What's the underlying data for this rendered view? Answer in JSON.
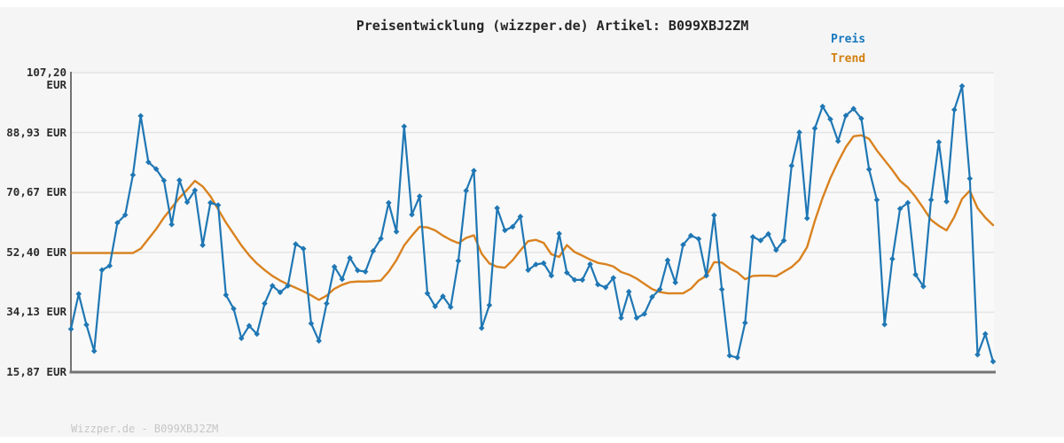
{
  "title": "Preisentwicklung (wizzper.de) Artikel: B099XBJ2ZM",
  "watermark": "Wizzper.de - B099XBJ2ZM",
  "legend": {
    "price_label": "Preis",
    "trend_label": "Trend"
  },
  "colors": {
    "price": "#1f77b4",
    "trend": "#d9821f",
    "background": "#f5f5f6",
    "plot_background": "#f9f9f9",
    "gridline": "#e4e4e4",
    "axis_spine": "#737373",
    "label_text": "#2c2c2c",
    "watermark_text": "#c6c6c6"
  },
  "y_axis": {
    "labels": [
      "107,20 EUR",
      "88,93 EUR",
      "70,67 EUR",
      "52,40 EUR",
      "34,13 EUR",
      "15,87 EUR"
    ],
    "values": [
      107.2,
      88.93,
      70.67,
      52.4,
      34.13,
      15.87
    ]
  },
  "chart_data": {
    "type": "line",
    "title": "Preisentwicklung (wizzper.de) Artikel: B099XBJ2ZM",
    "unit": "EUR",
    "ylim": [
      15.87,
      107.2
    ],
    "y_ticks": [
      107.2,
      88.93,
      70.67,
      52.4,
      34.13,
      15.87
    ],
    "x_tick_labels_visible": false,
    "grid": "horizontal",
    "legend_position": "top-right",
    "series": [
      {
        "name": "Preis",
        "color": "#1f77b4",
        "marker": "diamond",
        "values": [
          29,
          39.7,
          30.3,
          22.3,
          47,
          48.3,
          61.4,
          63.8,
          76,
          94,
          79.9,
          77.8,
          74.3,
          60.9,
          74.4,
          67.7,
          71.3,
          54.6,
          67.5,
          66.8,
          39.4,
          35.2,
          26.2,
          30,
          27.5,
          36.8,
          42.2,
          40.2,
          42.2,
          54.9,
          53.5,
          30.7,
          25.4,
          36.8,
          48,
          44.2,
          50.7,
          46.9,
          46.5,
          52.8,
          56.6,
          67.5,
          58.7,
          90.8,
          63.9,
          69.5,
          39.9,
          35.9,
          39,
          35.7,
          49.8,
          71.2,
          77.3,
          29.3,
          36.3,
          65.9,
          59.1,
          60.2,
          63.3,
          47,
          48.7,
          49.1,
          45.3,
          58.1,
          46.2,
          44,
          44,
          48.8,
          42.6,
          41.7,
          44.6,
          32.4,
          40.4,
          32.4,
          33.6,
          38.8,
          41.1,
          50,
          43.2,
          54.7,
          57.5,
          56.5,
          45.3,
          63.7,
          41.1,
          20.9,
          20.3,
          30.9,
          57.1,
          56,
          58,
          53.1,
          56,
          78.8,
          89,
          62.8,
          90.2,
          96.9,
          93,
          86.3,
          94.1,
          96.2,
          93.2,
          77.7,
          68.4,
          30.4,
          50.4,
          65.7,
          67.5,
          45.6,
          42,
          68.4,
          86,
          67.9,
          95.9,
          103.1,
          74.9,
          21.2,
          27.5,
          19.1
        ]
      },
      {
        "name": "Trend",
        "color": "#d9821f",
        "marker": "none",
        "values": [
          52.2,
          52.2,
          52.2,
          52.2,
          52.2,
          52.2,
          52.2,
          52.2,
          52.2,
          53.5,
          56.5,
          59.5,
          63,
          66,
          69,
          71.5,
          74.2,
          72.5,
          69.5,
          65.5,
          61.5,
          58,
          54.5,
          51.5,
          49,
          47,
          45.2,
          43.8,
          42.6,
          41.6,
          40.5,
          39.3,
          37.9,
          39.2,
          41.3,
          42.5,
          43.3,
          43.5,
          43.5,
          43.6,
          43.8,
          46.5,
          50,
          54.5,
          57.5,
          60.2,
          60,
          59.1,
          57.5,
          56.2,
          55.2,
          56.8,
          57.6,
          52,
          49,
          48,
          47.7,
          50,
          53,
          55.8,
          56.2,
          55.3,
          51.8,
          51,
          54.6,
          52.5,
          51.4,
          50.2,
          49.2,
          48.8,
          48.1,
          46.4,
          45.6,
          44.4,
          42.8,
          41.2,
          40.3,
          39.9,
          39.9,
          39.9,
          41.3,
          43.8,
          45.2,
          49.4,
          49.3,
          47.5,
          46.3,
          44.2,
          45.2,
          45.3,
          45.3,
          45.1,
          46.5,
          47.9,
          50.1,
          54,
          62,
          69,
          75,
          80,
          84.5,
          87.8,
          88.1,
          87,
          83.5,
          80.5,
          77.5,
          74.2,
          72.2,
          69.3,
          65.9,
          62.3,
          60.5,
          59.1,
          63.2,
          68.7,
          71.2,
          65.9,
          63,
          60.7
        ]
      }
    ]
  }
}
